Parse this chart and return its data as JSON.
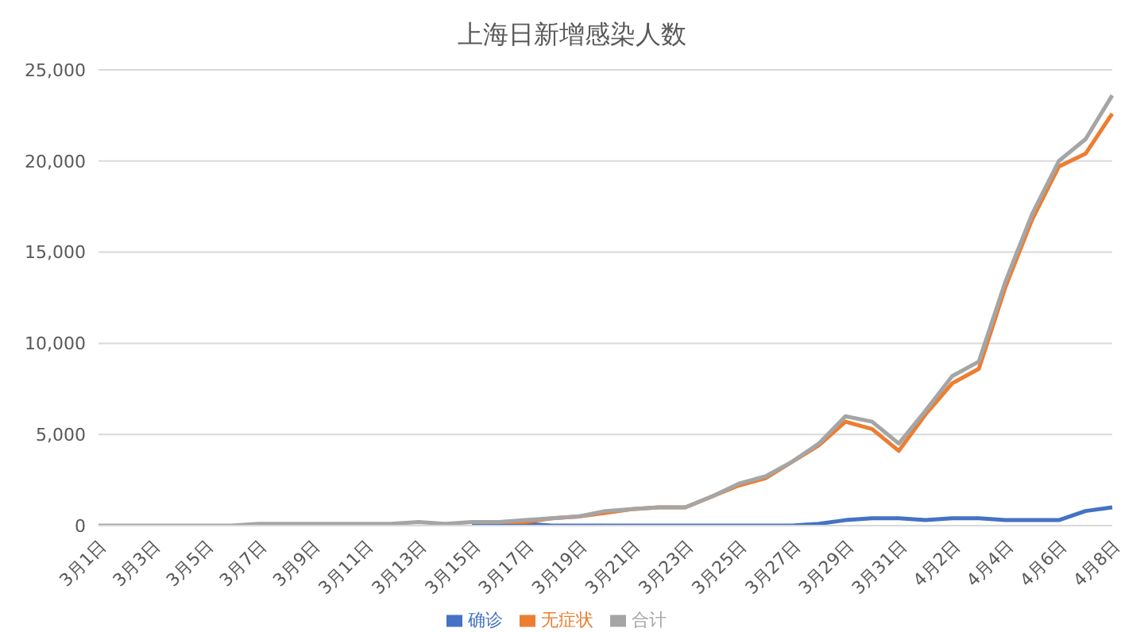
{
  "chart_data": {
    "type": "line",
    "title": "上海日新增感染人数",
    "categories": [
      "3月1日",
      null,
      "3月3日",
      null,
      "3月5日",
      null,
      "3月7日",
      null,
      "3月9日",
      null,
      "3月11日",
      null,
      "3月13日",
      null,
      "3月15日",
      null,
      "3月17日",
      null,
      "3月19日",
      null,
      "3月21日",
      null,
      "3月23日",
      null,
      "3月25日",
      null,
      "3月27日",
      null,
      "3月29日",
      null,
      "3月31日",
      null,
      "4月2日",
      null,
      "4月4日",
      null,
      "4月6日",
      null,
      "4月8日"
    ],
    "series": [
      {
        "name": "确诊",
        "color": "#4472c4",
        "values": [
          null,
          null,
          null,
          null,
          null,
          null,
          null,
          null,
          null,
          null,
          null,
          null,
          null,
          null,
          0,
          0,
          100,
          0,
          0,
          0,
          0,
          0,
          0,
          0,
          0,
          0,
          0,
          100,
          300,
          400,
          400,
          300,
          400,
          400,
          300,
          300,
          300,
          800,
          1000
        ]
      },
      {
        "name": "无症状",
        "color": "#ed7d31",
        "values": [
          null,
          null,
          null,
          null,
          null,
          null,
          null,
          null,
          null,
          null,
          null,
          null,
          null,
          null,
          null,
          200,
          200,
          400,
          500,
          700,
          900,
          1000,
          1000,
          1600,
          2200,
          2600,
          3500,
          4400,
          5700,
          5300,
          4100,
          6100,
          7800,
          8600,
          13100,
          16800,
          19700,
          20400,
          22600
        ]
      },
      {
        "name": "合计",
        "color": "#a5a5a5",
        "values": [
          0,
          0,
          0,
          0,
          0,
          0,
          100,
          100,
          100,
          100,
          100,
          100,
          200,
          100,
          200,
          200,
          300,
          400,
          500,
          800,
          900,
          1000,
          1000,
          1600,
          2300,
          2700,
          3500,
          4500,
          6000,
          5700,
          4500,
          6300,
          8200,
          9000,
          13400,
          17100,
          20000,
          21200,
          23600
        ]
      }
    ],
    "ylim": [
      0,
      25000
    ],
    "yticks": [
      0,
      {
        "value": 5000,
        "label": "5,000"
      },
      {
        "value": 10000,
        "label": "10,000"
      },
      {
        "value": 15000,
        "label": "15,000"
      },
      {
        "value": 20000,
        "label": "20,000"
      },
      {
        "value": 25000,
        "label": "25,000"
      }
    ],
    "grid": "y",
    "legend": "bottom",
    "marker": "none",
    "line_style": "solid"
  }
}
